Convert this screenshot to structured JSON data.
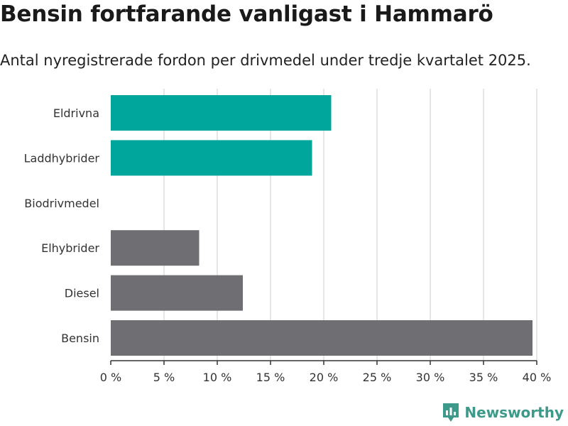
{
  "header": {
    "title": "Bensin fortfarande vanligast i Hammarö",
    "subtitle": "Antal nyregistrerade fordon per drivmedel under tredje kvartalet 2025."
  },
  "brand": {
    "name": "Newsworthy",
    "color": "#3d9a8b",
    "icon": "bar-chart-pin-icon"
  },
  "colors": {
    "highlight": "#00a69c",
    "neutral": "#6f6e73",
    "grid": "#dddddd"
  },
  "chart_data": {
    "type": "bar",
    "orientation": "horizontal",
    "title": "Bensin fortfarande vanligast i Hammarö",
    "subtitle": "Antal nyregistrerade fordon per drivmedel under tredje kvartalet 2025.",
    "categories": [
      "Eldrivna",
      "Laddhybrider",
      "Biodrivmedel",
      "Elhybrider",
      "Diesel",
      "Bensin"
    ],
    "values": [
      20.7,
      18.9,
      0,
      8.3,
      12.4,
      39.6
    ],
    "bar_colors": [
      "#00a69c",
      "#00a69c",
      "#6f6e73",
      "#6f6e73",
      "#6f6e73",
      "#6f6e73"
    ],
    "xlim": [
      0,
      40
    ],
    "xticks": [
      0,
      5,
      10,
      15,
      20,
      25,
      30,
      35,
      40
    ],
    "xtick_labels": [
      "0 %",
      "5 %",
      "10 %",
      "15 %",
      "20 %",
      "25 %",
      "30 %",
      "35 %",
      "40 %"
    ],
    "grid": true,
    "legend": "none"
  }
}
